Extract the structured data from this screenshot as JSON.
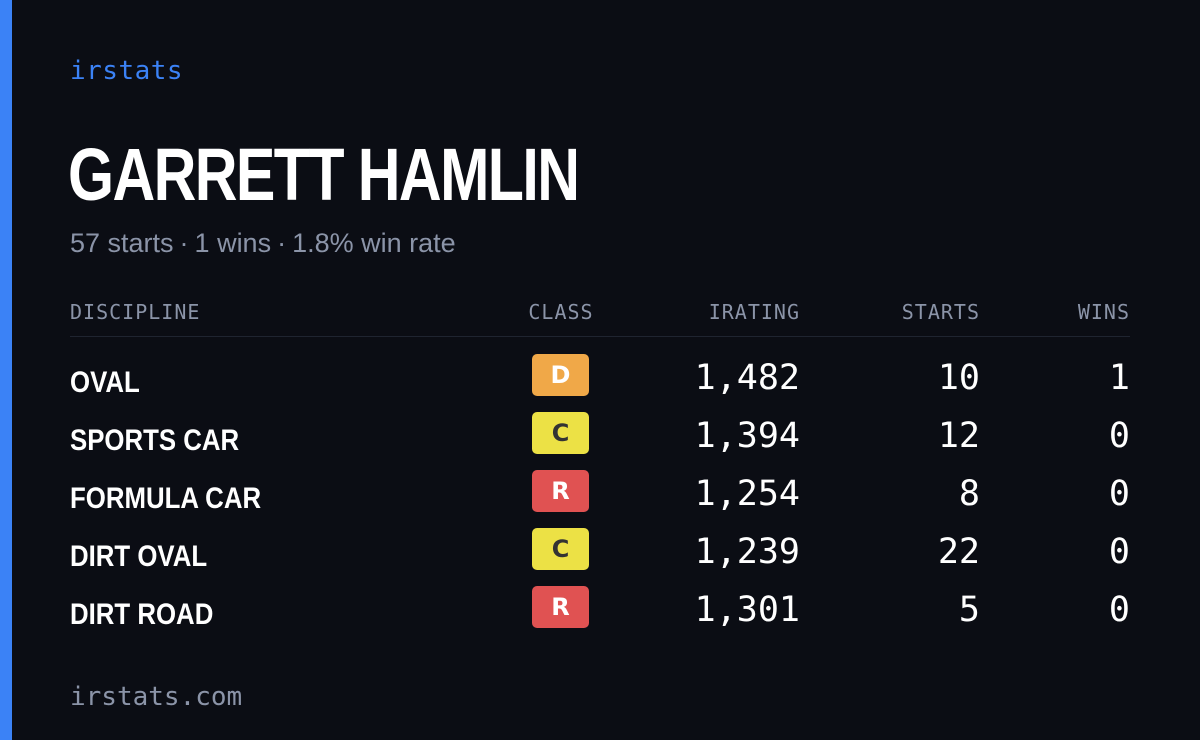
{
  "brand": "irstats",
  "driver": {
    "name": "GARRETT HAMLIN",
    "summary": {
      "starts": "57 starts",
      "wins": "1 wins",
      "win_rate": "1.8% win rate",
      "separator": "·"
    }
  },
  "table": {
    "headers": {
      "discipline": "DISCIPLINE",
      "class": "CLASS",
      "irating": "IRATING",
      "starts": "STARTS",
      "wins": "WINS"
    },
    "rows": [
      {
        "discipline": "OVAL",
        "class": "D",
        "class_color": "#f0a848",
        "class_text_color": "#ffffff",
        "irating": "1,482",
        "starts": "10",
        "wins": "1"
      },
      {
        "discipline": "SPORTS CAR",
        "class": "C",
        "class_color": "#ece145",
        "class_text_color": "#333333",
        "irating": "1,394",
        "starts": "12",
        "wins": "0"
      },
      {
        "discipline": "FORMULA CAR",
        "class": "R",
        "class_color": "#e05252",
        "class_text_color": "#ffffff",
        "irating": "1,254",
        "starts": "8",
        "wins": "0"
      },
      {
        "discipline": "DIRT OVAL",
        "class": "C",
        "class_color": "#ece145",
        "class_text_color": "#333333",
        "irating": "1,239",
        "starts": "22",
        "wins": "0"
      },
      {
        "discipline": "DIRT ROAD",
        "class": "R",
        "class_color": "#e05252",
        "class_text_color": "#ffffff",
        "irating": "1,301",
        "starts": "5",
        "wins": "0"
      }
    ]
  },
  "footer": "irstats.com",
  "colors": {
    "accent": "#3b82f6",
    "background": "#0b0d14",
    "muted_text": "#8b94a8"
  }
}
